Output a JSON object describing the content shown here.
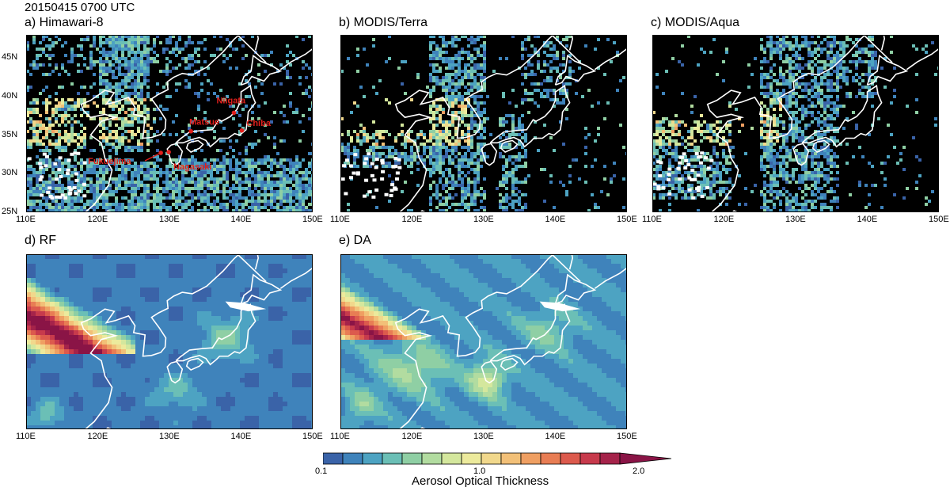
{
  "title": "20150415 0700 UTC",
  "panels": [
    {
      "id": "a",
      "label": "a) Himawari-8"
    },
    {
      "id": "b",
      "label": "b) MODIS/Terra"
    },
    {
      "id": "c",
      "label": "c) MODIS/Aqua"
    },
    {
      "id": "d",
      "label": "d) RF"
    },
    {
      "id": "e",
      "label": "e) DA"
    }
  ],
  "x_ticks": [
    "110E",
    "120E",
    "130E",
    "140E",
    "150E"
  ],
  "y_ticks": [
    "45N",
    "40N",
    "35N",
    "30N",
    "25N"
  ],
  "cities": [
    {
      "name": "Niigata",
      "lon": 139.0,
      "lat": 37.9
    },
    {
      "name": "Chiba",
      "lon": 140.1,
      "lat": 35.6
    },
    {
      "name": "Matsue",
      "lon": 133.0,
      "lat": 35.5
    },
    {
      "name": "Fukuejima",
      "lon": 128.8,
      "lat": 32.7
    },
    {
      "name": "Nagasaki",
      "lon": 129.9,
      "lat": 32.8
    }
  ],
  "colorbar": {
    "title": "Aerosol Optical Thickness",
    "min_label": "0.1",
    "mid_label": "1.0",
    "max_label": "2.0",
    "colors": [
      "#3a63a8",
      "#3f83bb",
      "#4da3c2",
      "#6bbfb6",
      "#8fcfa4",
      "#b2dca0",
      "#d4e79d",
      "#ecea9c",
      "#f1d88c",
      "#f2c078",
      "#ef9f62",
      "#e87d54",
      "#dc5a4d",
      "#c73a4c",
      "#a5234a",
      "#8a1446"
    ]
  },
  "colors": {
    "land_outline": "#ffffff",
    "city_marker": "#e0201c",
    "city_label": "#e0201c",
    "satellite_bg": "#000000"
  }
}
